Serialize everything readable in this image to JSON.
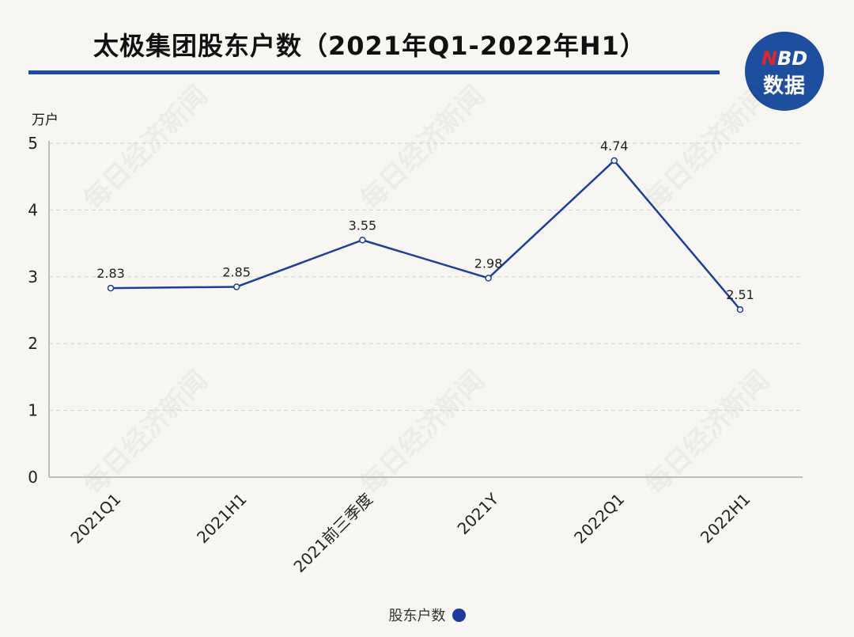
{
  "header": {
    "title": "太极集团股东户数（2021年Q1-2022年H1）",
    "logo_top_n": "N",
    "logo_top_rest": "BD",
    "logo_bottom": "数据"
  },
  "watermark_text": "每日经济新闻",
  "chart_data": {
    "type": "line",
    "title": "太极集团股东户数（2021年Q1-2022年H1）",
    "unit_label": "万户",
    "categories": [
      "2021Q1",
      "2021H1",
      "2021前三季度",
      "2021Y",
      "2022Q1",
      "2022H1"
    ],
    "series": [
      {
        "name": "股东户数",
        "values": [
          2.83,
          2.85,
          3.55,
          2.98,
          4.74,
          2.51
        ],
        "data_labels": [
          "2.83",
          "2.85",
          "3.55",
          "2.98",
          "4.74",
          "2.51"
        ]
      }
    ],
    "ylim": [
      0,
      5
    ],
    "yticks": [
      "0",
      "1",
      "2",
      "3",
      "4",
      "5"
    ],
    "grid": true,
    "legend_position": "bottom-center",
    "colors": {
      "line": "#1d3f9a",
      "legend_dot": "#1a3a9f",
      "title_rule": "#1c4a9c",
      "logo": "#1e4f9e",
      "logo_accent": "#e0262b",
      "grid": "#cfcfcf"
    }
  }
}
